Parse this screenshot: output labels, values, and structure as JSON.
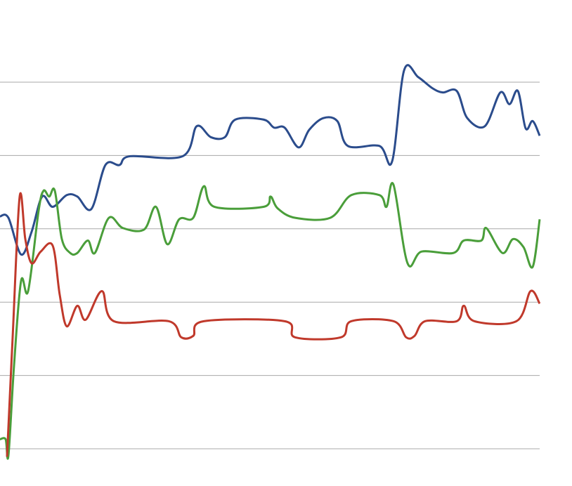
{
  "chart_data": {
    "type": "line",
    "xlim": [
      0,
      768
    ],
    "ylim": [
      0,
      5
    ],
    "yticks": [
      0,
      1,
      2,
      3,
      4,
      5
    ],
    "grid": true,
    "series": [
      {
        "color": "#2b4c8c",
        "x": [
          0,
          12,
          30,
          45,
          60,
          75,
          95,
          110,
          130,
          150,
          170,
          185,
          260,
          280,
          300,
          320,
          335,
          375,
          390,
          405,
          425,
          440,
          460,
          480,
          495,
          540,
          558,
          575,
          595,
          615,
          630,
          650,
          665,
          690,
          712,
          725,
          737,
          748,
          758,
          768
        ],
        "values": [
          3.17,
          3.15,
          2.65,
          2.96,
          3.44,
          3.3,
          3.46,
          3.44,
          3.27,
          3.87,
          3.87,
          3.99,
          3.99,
          4.4,
          4.25,
          4.25,
          4.49,
          4.49,
          4.38,
          4.38,
          4.11,
          4.35,
          4.51,
          4.47,
          4.13,
          4.13,
          3.92,
          5.16,
          5.07,
          4.92,
          4.86,
          4.88,
          4.51,
          4.4,
          4.86,
          4.7,
          4.88,
          4.37,
          4.47,
          4.27
        ]
      },
      {
        "color": "#4a9e3a",
        "x": [
          0,
          8,
          12,
          20,
          30,
          40,
          55,
          62,
          70,
          78,
          88,
          100,
          110,
          125,
          135,
          155,
          175,
          205,
          222,
          238,
          255,
          275,
          290,
          305,
          375,
          385,
          395,
          420,
          470,
          500,
          540,
          550,
          560,
          580,
          600,
          645,
          660,
          685,
          692,
          715,
          730,
          745,
          758,
          768
        ],
        "values": [
          0.13,
          0.13,
          -0.09,
          1.14,
          2.29,
          2.15,
          3.25,
          3.52,
          3.44,
          3.52,
          2.86,
          2.67,
          2.67,
          2.84,
          2.67,
          3.15,
          3.01,
          2.99,
          3.3,
          2.79,
          3.13,
          3.15,
          3.58,
          3.3,
          3.3,
          3.44,
          3.28,
          3.15,
          3.15,
          3.46,
          3.46,
          3.3,
          3.6,
          2.53,
          2.69,
          2.67,
          2.84,
          2.84,
          3.01,
          2.67,
          2.86,
          2.75,
          2.48,
          3.13
        ]
      },
      {
        "color": "#c0392b",
        "x": [
          10,
          18,
          28,
          36,
          45,
          58,
          75,
          85,
          95,
          110,
          122,
          145,
          162,
          240,
          258,
          275,
          290,
          405,
          420,
          485,
          500,
          560,
          578,
          590,
          605,
          650,
          660,
          675,
          735,
          755,
          768
        ],
        "values": [
          -0.11,
          1.52,
          3.44,
          2.86,
          2.53,
          2.69,
          2.77,
          2.1,
          1.67,
          1.95,
          1.76,
          2.15,
          1.74,
          1.74,
          1.52,
          1.54,
          1.74,
          1.74,
          1.52,
          1.52,
          1.74,
          1.74,
          1.52,
          1.54,
          1.74,
          1.74,
          1.95,
          1.74,
          1.74,
          2.15,
          1.98
        ]
      }
    ]
  }
}
